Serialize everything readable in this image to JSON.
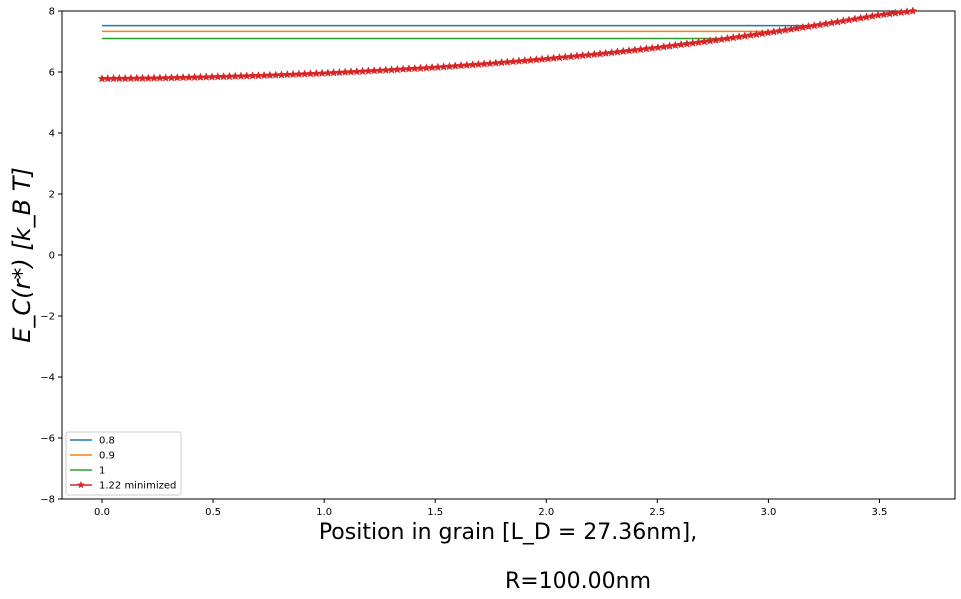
{
  "chart_data": {
    "type": "line",
    "title": "",
    "xlabel_line1": "Position in grain [L_D = 27.36nm],",
    "xlabel_line2": "R=100.00nm",
    "ylabel": "E_C(r*) [k_B T]",
    "xlim": [
      -0.18,
      3.84
    ],
    "ylim": [
      -8,
      8
    ],
    "xticks": [
      "0.0",
      "0.5",
      "1.0",
      "1.5",
      "2.0",
      "2.5",
      "3.0",
      "3.5"
    ],
    "xtick_values": [
      0,
      0.5,
      1.0,
      1.5,
      2.0,
      2.5,
      3.0,
      3.5
    ],
    "yticks": [
      "−8",
      "−6",
      "−4",
      "−2",
      "0",
      "2",
      "4",
      "6",
      "8"
    ],
    "ytick_values": [
      -8,
      -6,
      -4,
      -2,
      0,
      2,
      4,
      6,
      8
    ],
    "grid": false,
    "legend_position": "lower-left",
    "series": [
      {
        "name": "0.8",
        "color": "#1f77b4",
        "marker": "none",
        "flat_until": 2.6,
        "flat_value": 7.52
      },
      {
        "name": "0.9",
        "color": "#ff7f0e",
        "marker": "none",
        "flat_until": 2.5,
        "flat_value": 7.33
      },
      {
        "name": "1",
        "color": "#2ca02c",
        "marker": "none",
        "flat_until": 2.15,
        "flat_value": 7.1
      },
      {
        "name": "1.22 minimized",
        "color": "#d62728",
        "marker": "star",
        "x": [
          0.0,
          0.25,
          0.5,
          0.75,
          1.0,
          1.25,
          1.5,
          1.75,
          2.0,
          2.25,
          2.5,
          2.75,
          3.0,
          3.25,
          3.5,
          3.65
        ],
        "y": [
          5.78,
          5.8,
          5.84,
          5.89,
          5.96,
          6.05,
          6.15,
          6.28,
          6.43,
          6.6,
          6.8,
          7.03,
          7.29,
          7.57,
          7.87,
          8.0
        ]
      }
    ],
    "x_end": 3.65,
    "y_end": 8.0
  }
}
